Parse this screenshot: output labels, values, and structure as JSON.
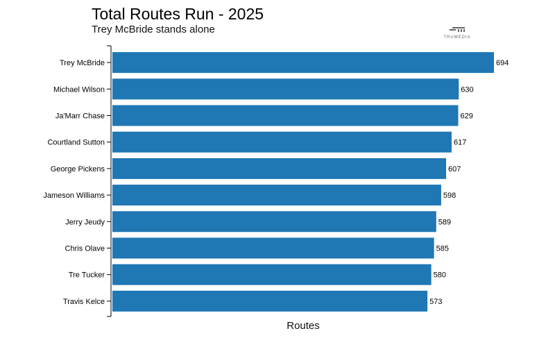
{
  "chart_data": {
    "type": "bar",
    "orientation": "horizontal",
    "title": "Total Routes Run - 2025",
    "subtitle": "Trey McBride stands alone",
    "xlabel": "Routes",
    "ylabel": "",
    "categories": [
      "Trey McBride",
      "Michael Wilson",
      "Ja'Marr Chase",
      "Courtland Sutton",
      "George Pickens",
      "Jameson Williams",
      "Jerry Jeudy",
      "Chris Olave",
      "Tre Tucker",
      "Travis Kelce"
    ],
    "values": [
      694,
      630,
      629,
      617,
      607,
      598,
      589,
      585,
      580,
      573
    ],
    "xlim": [
      0,
      694
    ],
    "grid": false,
    "bar_color": "#1f77b4"
  },
  "logo": {
    "text": "TRUMEDIA"
  }
}
